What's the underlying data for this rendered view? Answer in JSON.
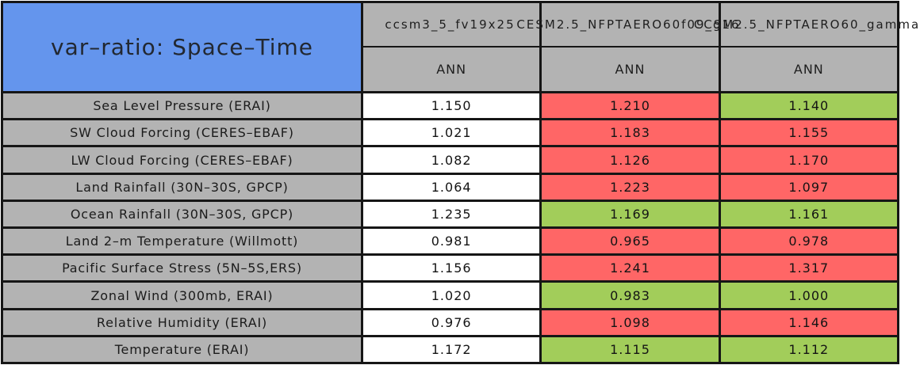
{
  "chart_data": {
    "type": "table",
    "title": "var–ratio: Space–Time",
    "column_headers": [
      "ccsm3_5_fv19x25",
      "CESM2.5_NFPTAERO60f09_g16",
      "CCSM2.5_NFPTAERO60_gamma"
    ],
    "subheaders": [
      "ANN",
      "ANN",
      "ANN"
    ],
    "row_labels": [
      "Sea Level Pressure (ERAI)",
      "SW Cloud Forcing (CERES–EBAF)",
      "LW Cloud Forcing (CERES–EBAF)",
      "Land Rainfall (30N–30S, GPCP)",
      "Ocean Rainfall (30N–30S, GPCP)",
      "Land 2–m Temperature (Willmott)",
      "Pacific Surface Stress (5N–5S,ERS)",
      "Zonal Wind (300mb, ERAI)",
      "Relative Humidity (ERAI)",
      "Temperature (ERAI)"
    ],
    "values": [
      [
        "1.150",
        "1.210",
        "1.140"
      ],
      [
        "1.021",
        "1.183",
        "1.155"
      ],
      [
        "1.082",
        "1.126",
        "1.170"
      ],
      [
        "1.064",
        "1.223",
        "1.097"
      ],
      [
        "1.235",
        "1.169",
        "1.161"
      ],
      [
        "0.981",
        "0.965",
        "0.978"
      ],
      [
        "1.156",
        "1.241",
        "1.317"
      ],
      [
        "1.020",
        "0.983",
        "1.000"
      ],
      [
        "0.976",
        "1.098",
        "1.146"
      ],
      [
        "1.172",
        "1.115",
        "1.112"
      ]
    ],
    "cell_colors": [
      [
        "white",
        "red",
        "green"
      ],
      [
        "white",
        "red",
        "red"
      ],
      [
        "white",
        "red",
        "red"
      ],
      [
        "white",
        "red",
        "red"
      ],
      [
        "white",
        "green",
        "green"
      ],
      [
        "white",
        "red",
        "red"
      ],
      [
        "white",
        "red",
        "red"
      ],
      [
        "white",
        "green",
        "green"
      ],
      [
        "white",
        "red",
        "red"
      ],
      [
        "white",
        "green",
        "green"
      ]
    ]
  },
  "colors": {
    "title_blue": "#6495ED",
    "header_gray": "#B3B3B3",
    "cell_red": "#FF6666",
    "cell_green": "#A2CD5A",
    "cell_white": "#FFFFFF",
    "grid_line": "#161616"
  }
}
